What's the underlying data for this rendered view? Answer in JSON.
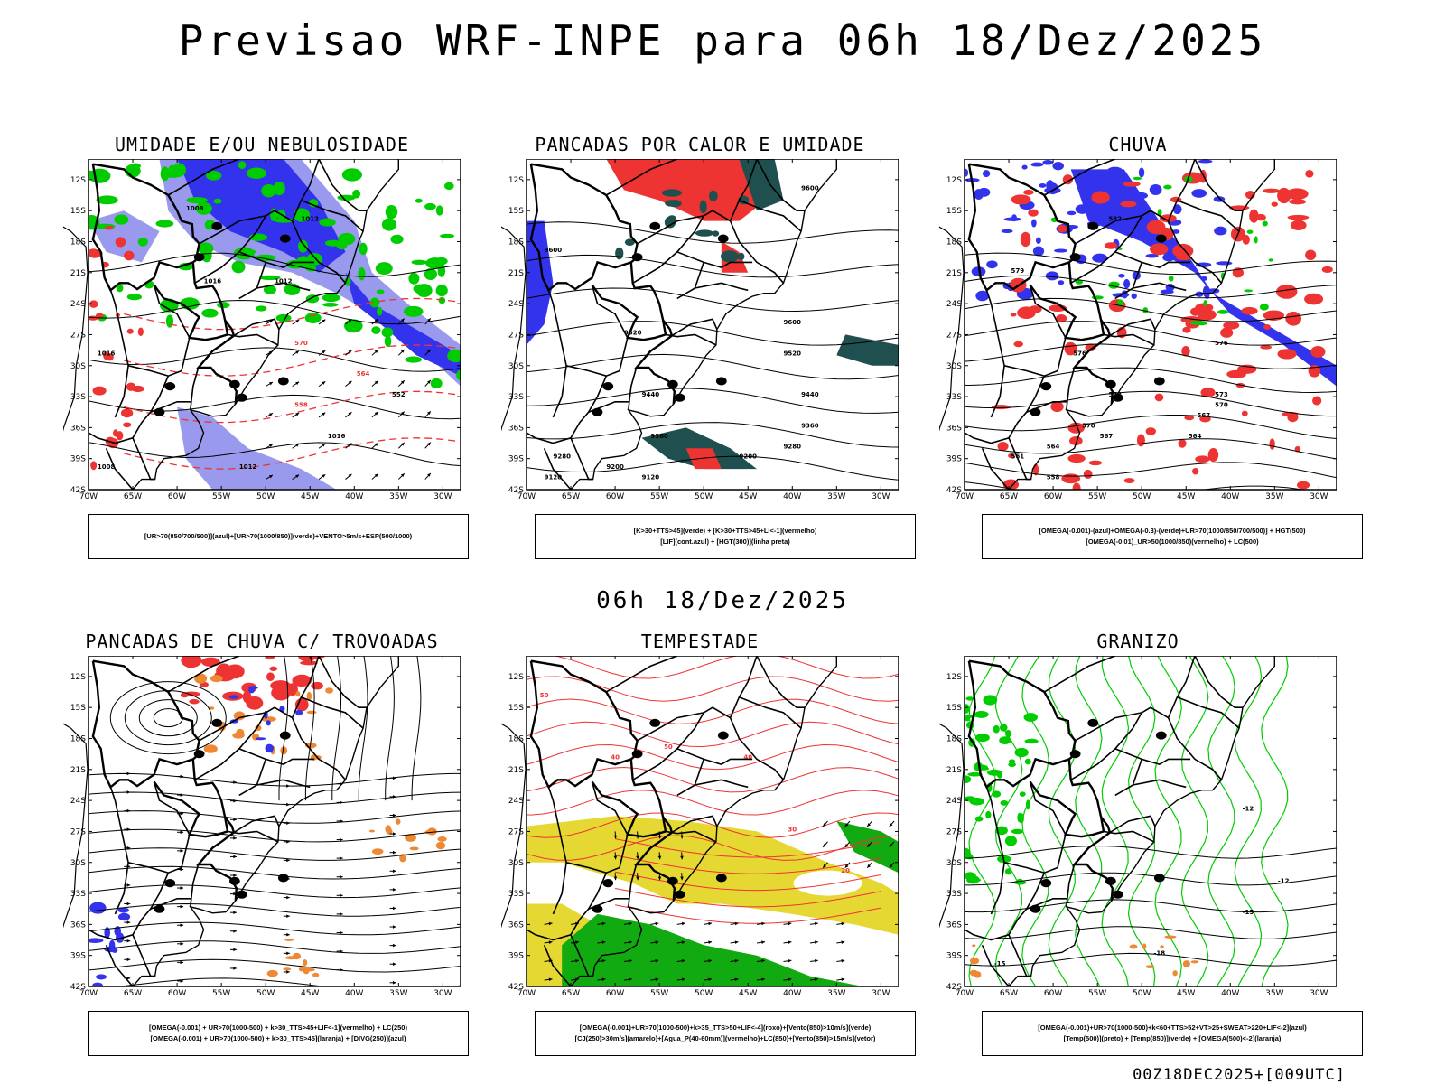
{
  "header": {
    "title": "Previsao WRF-INPE  para 06h 18/Dez/2025",
    "subtitle": "06h 18/Dez/2025"
  },
  "footer": {
    "run": "00Z18DEC2025+[009UTC]"
  },
  "axes": {
    "lat_labels": [
      "12S",
      "15S",
      "18S",
      "21S",
      "24S",
      "27S",
      "30S",
      "33S",
      "36S",
      "39S",
      "42S"
    ],
    "lon_labels": [
      "70W",
      "65W",
      "60W",
      "55W",
      "50W",
      "45W",
      "40W",
      "35W",
      "30W"
    ]
  },
  "colors": {
    "blue": "#3333ee",
    "lightblue": "#9999ee",
    "green": "#00cc00",
    "red": "#ee3333",
    "darkgreen": "#1f4f4f",
    "orange": "#ee8833",
    "yellow": "#e6d832",
    "vector_green": "#11aa11"
  },
  "panels": [
    {
      "title": "UMIDADE E/OU NEBULOSIDADE",
      "legend": [
        "[UR>70(850/700/500)](azul)+[UR>70(1000/850)](verde)+VENTO>5m/s+ESP(500/1000)"
      ],
      "labels": [
        "1008",
        "1012",
        "1016",
        "570",
        "564",
        "558",
        "552",
        "1016",
        "1012",
        "1008",
        "1012",
        "1016"
      ]
    },
    {
      "title": "PANCADAS POR CALOR E UMIDADE",
      "legend": [
        "[K>30+TTS>45](verde) + [K>30+TTS>45+LI<-1](vermelho)",
        "[LIF](cont.azul) + [HGT(300)](linha preta)"
      ],
      "labels": [
        "9600",
        "9600",
        "9520",
        "9440",
        "9360",
        "9280",
        "9200",
        "9120",
        "9600",
        "9520",
        "9440",
        "9360",
        "9280",
        "9200",
        "9120"
      ]
    },
    {
      "title": "CHUVA",
      "legend": [
        "[OMEGA(-0.001)-(azul)+OMEGA(-0.3)-(verde)+UR>70(1000/850/700/500)] + HGT(500)",
        "[OMEGA(-0.01)_UR>50(1000/850)(vermelho) + LC(500)"
      ],
      "labels": [
        "582",
        "579",
        "576",
        "573",
        "570",
        "567",
        "564",
        "561",
        "558",
        "576",
        "573",
        "570",
        "567",
        "564"
      ]
    },
    {
      "title": "PANCADAS DE CHUVA C/ TROVOADAS",
      "legend": [
        "[OMEGA(-0.001) + UR>70(1000-500) + k>30_TTS>45+LIF<-1](vermelho) + LC(250)",
        "[OMEGA(-0.001) + UR>70(1000-500) + k>30_TTS>45](laranja) + [DIVG(250)](azul)"
      ],
      "labels": []
    },
    {
      "title": "TEMPESTADE",
      "legend": [
        "[OMEGA(-0.001)+UR>70(1000-500)+k>35_TTS>50+LIF<-4](roxo)+[Vento(850)>10m/s](verde)",
        "[CJ(250)>30m/s](amarelo)+[Agua_P(40-60mm)](vermelho)+LC(850)+[Vento(850)>15m/s](vetor)"
      ],
      "labels": [
        "50",
        "40",
        "30",
        "20",
        "50",
        "40"
      ]
    },
    {
      "title": "GRANIZO",
      "legend": [
        "[OMEGA(-0.001)+UR>70(1000-500)+k<60+TTS>52+VT>25+SWEAT>220+LIF<-2](azul)",
        "[Temp(500)](preto) + [Temp(850)](verde) + [OMEGA(500)<-2](laranja)"
      ],
      "labels": [
        "-12",
        "-15",
        "-18",
        "-15",
        "-12"
      ]
    }
  ]
}
